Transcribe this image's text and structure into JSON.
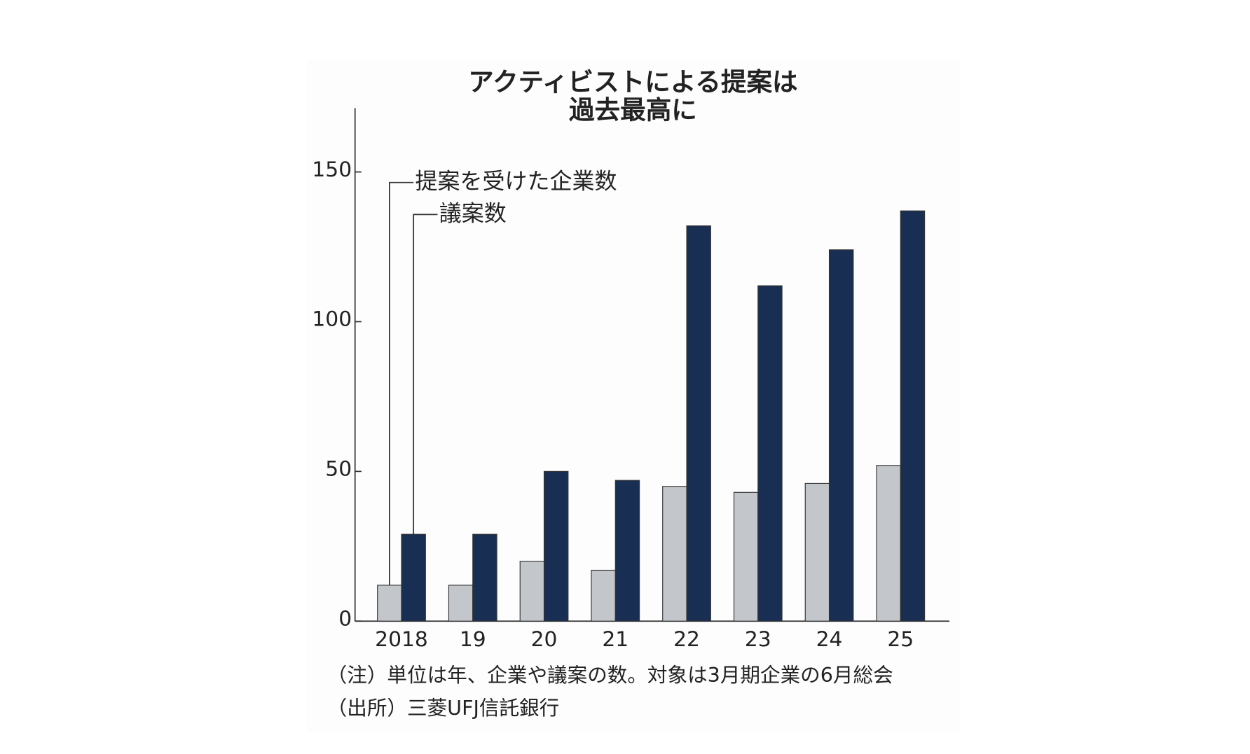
{
  "chart_data": {
    "type": "bar",
    "title": [
      "アクティビストによる提案は",
      "過去最高に"
    ],
    "categories": [
      "2018",
      "19",
      "20",
      "21",
      "22",
      "23",
      "24",
      "25"
    ],
    "series": [
      {
        "name": "提案を受けた企業数",
        "color": "#c3c6ca",
        "values": [
          12,
          12,
          20,
          17,
          45,
          43,
          46,
          52
        ]
      },
      {
        "name": "議案数",
        "color": "#182f53",
        "values": [
          29,
          29,
          50,
          47,
          132,
          112,
          124,
          137
        ]
      }
    ],
    "ylim": [
      0,
      170
    ],
    "yticks": [
      0,
      50,
      100,
      150
    ],
    "grid": false,
    "notes": [
      "（注）単位は年、企業や議案の数。対象は3月期企業の6月総会",
      "（出所）三菱UFJ信託銀行"
    ]
  }
}
